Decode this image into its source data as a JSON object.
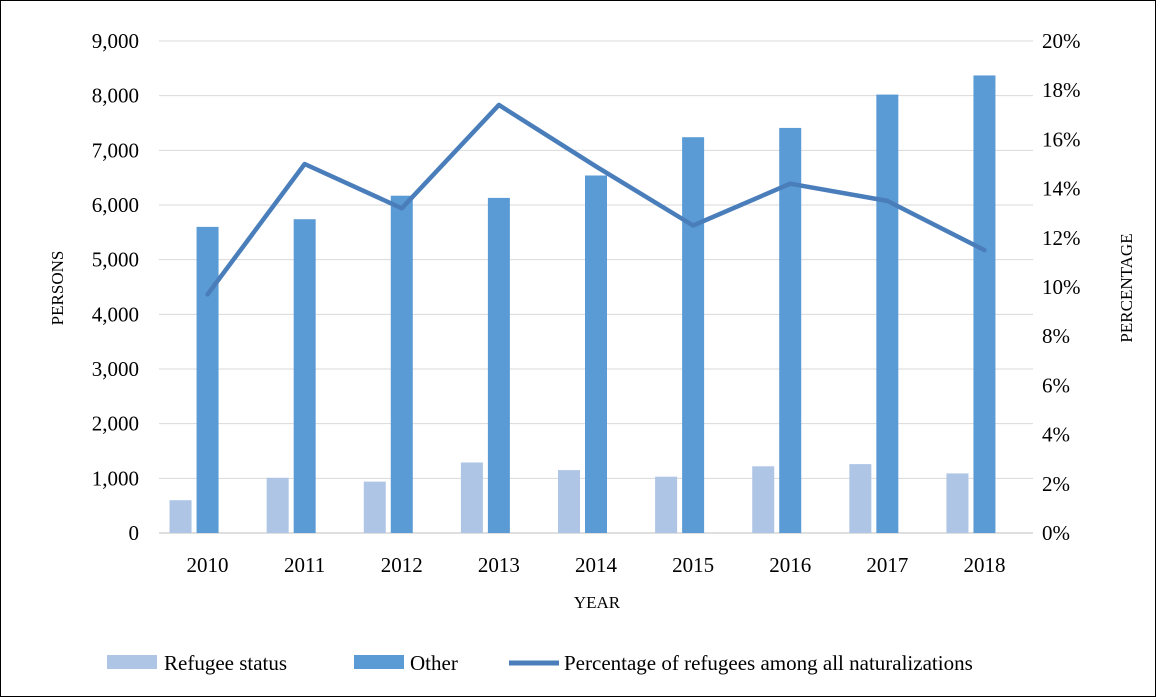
{
  "chart_data": {
    "type": "bar",
    "categories": [
      "2010",
      "2011",
      "2012",
      "2013",
      "2014",
      "2015",
      "2016",
      "2017",
      "2018"
    ],
    "xlabel": "YEAR",
    "ylabel": "PERSONS",
    "y2label": "PERCENTAGE",
    "ylim": [
      0,
      9000
    ],
    "y2lim": [
      0,
      0.2
    ],
    "y_ticks": [
      "0",
      "1,000",
      "2,000",
      "3,000",
      "4,000",
      "5,000",
      "6,000",
      "7,000",
      "8,000",
      "9,000"
    ],
    "y2_ticks": [
      "0%",
      "2%",
      "4%",
      "6%",
      "8%",
      "10%",
      "12%",
      "14%",
      "16%",
      "18%",
      "20%"
    ],
    "grid": true,
    "legend_position": "bottom",
    "series": [
      {
        "name": "Refugee status",
        "type": "bar",
        "axis": "left",
        "color": "#aec5e6",
        "values": [
          600,
          1010,
          940,
          1290,
          1150,
          1030,
          1220,
          1260,
          1090
        ]
      },
      {
        "name": "Other",
        "type": "bar",
        "axis": "left",
        "color": "#5b9bd5",
        "values": [
          5600,
          5740,
          6170,
          6130,
          6540,
          7240,
          7410,
          8020,
          8370
        ]
      },
      {
        "name": "Percentage of refugees among all naturalizations",
        "type": "line",
        "axis": "right",
        "color": "#4a7ebb",
        "values": [
          0.097,
          0.15,
          0.132,
          0.174,
          0.149,
          0.125,
          0.142,
          0.135,
          0.115
        ]
      }
    ]
  }
}
